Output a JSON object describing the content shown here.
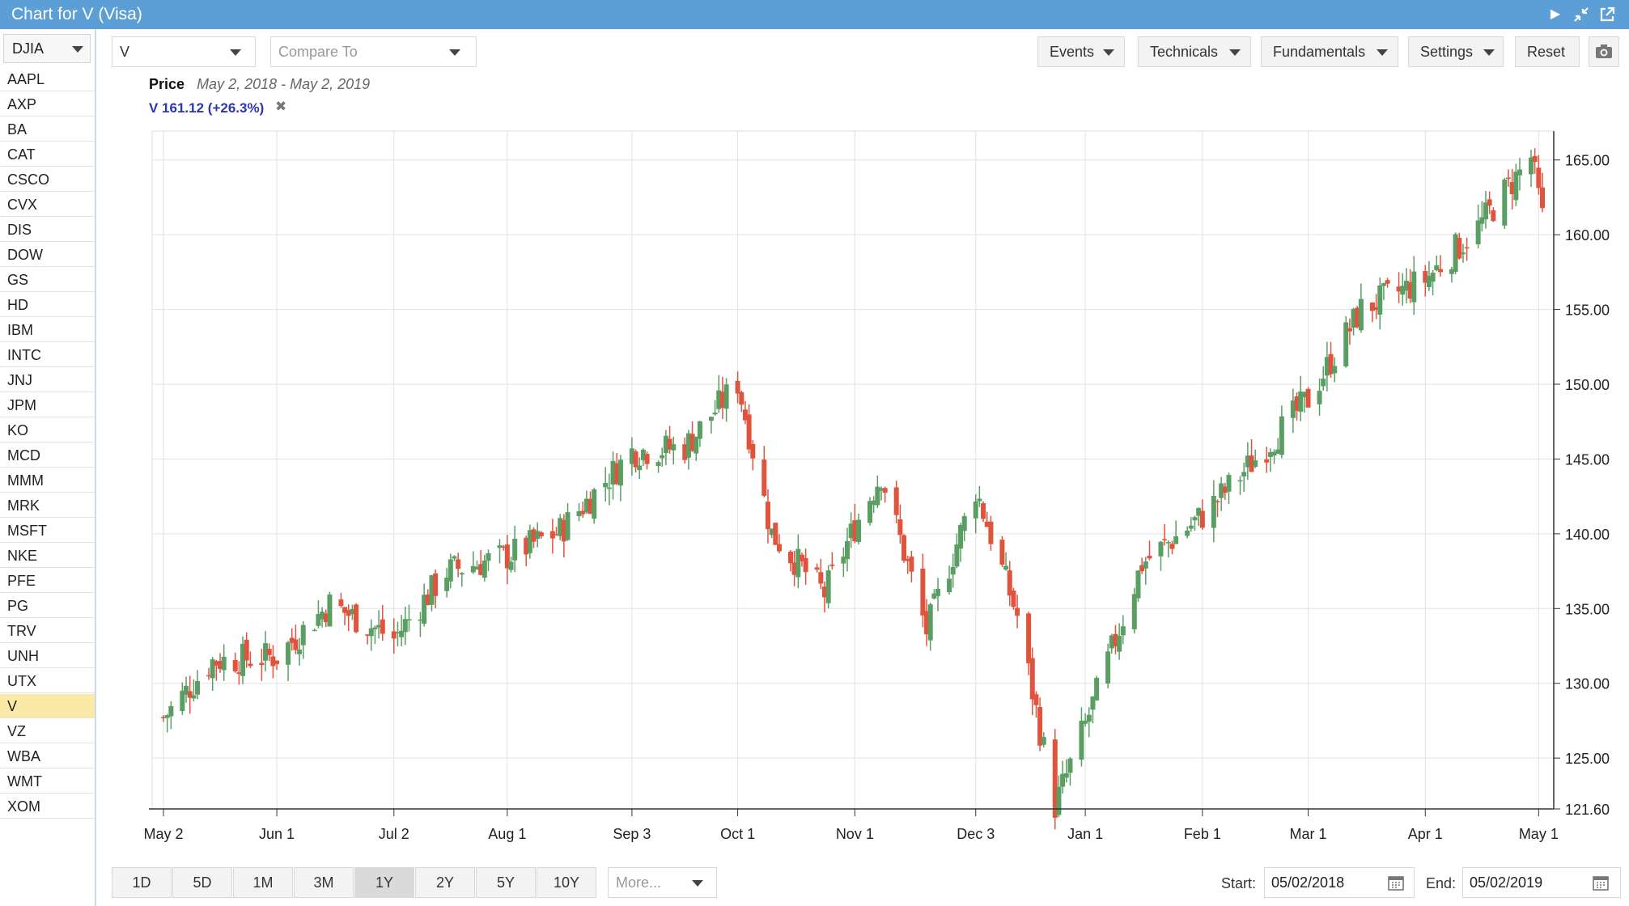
{
  "window": {
    "title": "Chart for V (Visa)"
  },
  "sidebar": {
    "index_label": "DJIA",
    "symbols": [
      "AAPL",
      "AXP",
      "BA",
      "CAT",
      "CSCO",
      "CVX",
      "DIS",
      "DOW",
      "GS",
      "HD",
      "IBM",
      "INTC",
      "JNJ",
      "JPM",
      "KO",
      "MCD",
      "MMM",
      "MRK",
      "MSFT",
      "NKE",
      "PFE",
      "PG",
      "TRV",
      "UNH",
      "UTX",
      "V",
      "VZ",
      "WBA",
      "WMT",
      "XOM"
    ],
    "selected": "V"
  },
  "toolbar": {
    "symbol_value": "V",
    "compare_placeholder": "Compare To",
    "events_label": "Events",
    "technicals_label": "Technicals",
    "fundamentals_label": "Fundamentals",
    "settings_label": "Settings",
    "reset_label": "Reset"
  },
  "legend": {
    "price_label": "Price",
    "date_range": "May 2, 2018 - May 2, 2019",
    "series_label": "V 161.12 (+26.3%)",
    "remove_symbol": "✖"
  },
  "chart_data": {
    "type": "candlestick",
    "x_tick_labels": [
      "May 2",
      "Jun 1",
      "Jul 2",
      "Aug 1",
      "Sep 3",
      "Oct 1",
      "Nov 1",
      "Dec 3",
      "Jan 1",
      "Feb 1",
      "Mar 1",
      "Apr 1",
      "May 1"
    ],
    "y_tick_labels": [
      "165.00",
      "160.00",
      "155.00",
      "150.00",
      "145.00",
      "140.00",
      "135.00",
      "130.00",
      "125.00",
      "121.60"
    ],
    "y_range": [
      121.6,
      166.5
    ],
    "y_axis_position": "right",
    "grid": true,
    "up_color": "#5a9e64",
    "down_color": "#e0533d",
    "anchors_close": [
      {
        "date": "2018-05-02",
        "close": 127.7
      },
      {
        "date": "2018-05-15",
        "close": 131.5
      },
      {
        "date": "2018-06-01",
        "close": 131.8
      },
      {
        "date": "2018-06-15",
        "close": 135.3
      },
      {
        "date": "2018-07-02",
        "close": 133.0
      },
      {
        "date": "2018-07-16",
        "close": 137.5
      },
      {
        "date": "2018-08-01",
        "close": 138.5
      },
      {
        "date": "2018-08-15",
        "close": 140.2
      },
      {
        "date": "2018-09-03",
        "close": 145.5
      },
      {
        "date": "2018-09-17",
        "close": 145.8
      },
      {
        "date": "2018-10-01",
        "close": 150.1
      },
      {
        "date": "2018-10-10",
        "close": 140.0
      },
      {
        "date": "2018-10-24",
        "close": 136.0
      },
      {
        "date": "2018-11-01",
        "close": 140.5
      },
      {
        "date": "2018-11-08",
        "close": 144.0
      },
      {
        "date": "2018-11-20",
        "close": 133.5
      },
      {
        "date": "2018-12-03",
        "close": 143.0
      },
      {
        "date": "2018-12-14",
        "close": 134.5
      },
      {
        "date": "2018-12-24",
        "close": 121.8
      },
      {
        "date": "2019-01-03",
        "close": 128.6
      },
      {
        "date": "2019-01-16",
        "close": 138.0
      },
      {
        "date": "2019-02-01",
        "close": 141.2
      },
      {
        "date": "2019-02-15",
        "close": 145.0
      },
      {
        "date": "2019-03-01",
        "close": 149.0
      },
      {
        "date": "2019-03-15",
        "close": 155.0
      },
      {
        "date": "2019-04-01",
        "close": 157.0
      },
      {
        "date": "2019-04-15",
        "close": 160.5
      },
      {
        "date": "2019-04-29",
        "close": 165.2
      },
      {
        "date": "2019-05-02",
        "close": 161.12
      }
    ]
  },
  "range_buttons": [
    "1D",
    "5D",
    "1M",
    "3M",
    "1Y",
    "2Y",
    "5Y",
    "10Y"
  ],
  "range_active": "1Y",
  "more_placeholder": "More...",
  "dates": {
    "start_label": "Start:",
    "start_value": "05/02/2018",
    "end_label": "End:",
    "end_value": "05/02/2019"
  }
}
